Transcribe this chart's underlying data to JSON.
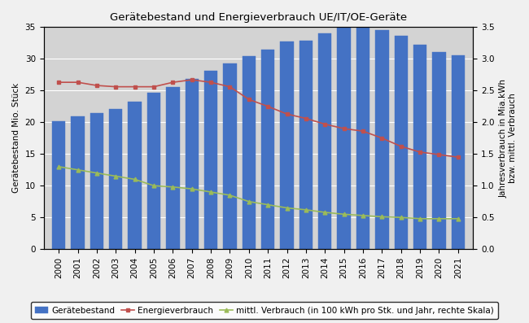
{
  "title": "Gerätebestand und Energieverbrauch UE/IT/OE-Geräte",
  "years": [
    2000,
    2001,
    2002,
    2003,
    2004,
    2005,
    2006,
    2007,
    2008,
    2009,
    2010,
    2011,
    2012,
    2013,
    2014,
    2015,
    2016,
    2017,
    2018,
    2019,
    2020,
    2021
  ],
  "geratebestand": [
    20.1,
    20.9,
    21.4,
    22.1,
    23.2,
    24.6,
    25.5,
    26.8,
    28.1,
    29.3,
    30.4,
    31.5,
    32.7,
    32.8,
    34.0,
    35.0,
    35.0,
    34.5,
    33.6,
    32.2,
    31.1,
    30.5
  ],
  "energieverbrauch": [
    26.3,
    26.3,
    25.8,
    25.6,
    25.6,
    25.6,
    26.3,
    26.7,
    26.3,
    25.6,
    23.6,
    22.5,
    21.3,
    20.6,
    19.7,
    19.0,
    18.6,
    17.5,
    16.2,
    15.3,
    14.9,
    14.5
  ],
  "mittl_verbrauch": [
    13.0,
    12.5,
    12.0,
    11.5,
    11.0,
    10.0,
    9.8,
    9.5,
    9.0,
    8.5,
    7.5,
    7.0,
    6.5,
    6.2,
    5.8,
    5.5,
    5.3,
    5.1,
    5.0,
    4.8,
    4.8,
    4.8
  ],
  "bar_color": "#4472C4",
  "bar_edgecolor": "#4472C4",
  "line1_color": "#C0504D",
  "line2_color": "#9BBB59",
  "ylabel_left": "Gerätebestand Mio. Stück",
  "ylabel_right": "Jahresverbrauch in Mia.kWh\nbzw. mittl. Verbrauch",
  "ylim_left": [
    0,
    35
  ],
  "ylim_right": [
    0,
    3.5
  ],
  "yticks_left": [
    0,
    5,
    10,
    15,
    20,
    25,
    30,
    35
  ],
  "yticks_right": [
    0.0,
    0.5,
    1.0,
    1.5,
    2.0,
    2.5,
    3.0,
    3.5
  ],
  "legend_labels": [
    "Gerätebestand",
    "Energieverbrauch",
    "mittl. Verbrauch (in 100 kWh pro Stk. und Jahr, rechte Skala)"
  ],
  "plot_bg_color": "#D3D3D3",
  "fig_bg_color": "#F0F0F0",
  "title_fontsize": 9.5,
  "axis_label_fontsize": 7.5,
  "tick_fontsize": 7.5,
  "legend_fontsize": 7.5
}
